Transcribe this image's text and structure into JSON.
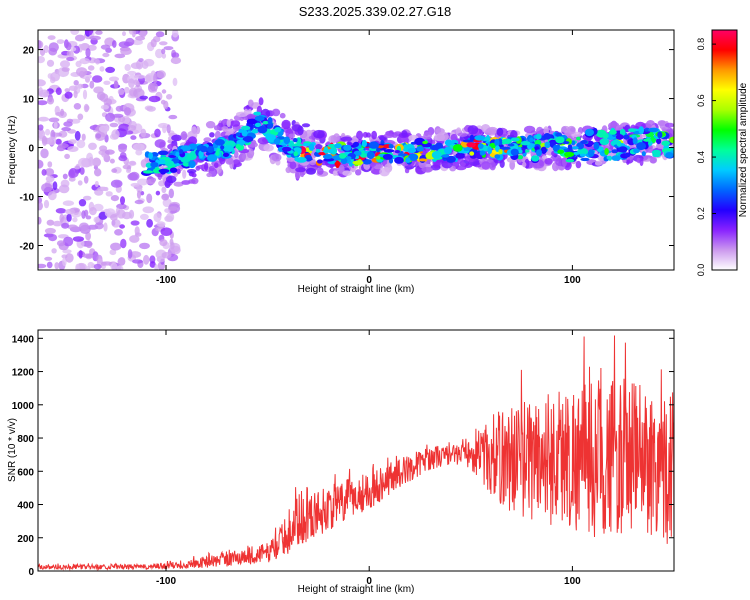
{
  "title": "S233.2025.339.02.27.G18",
  "chart_data": [
    {
      "type": "heatmap",
      "title": "",
      "xlabel": "Height of straight line (km)",
      "ylabel": "Frequency (Hz)",
      "xlim": [
        -163,
        150
      ],
      "ylim": [
        -25,
        24
      ],
      "xticks": [
        -100,
        0,
        100
      ],
      "yticks": [
        -20,
        -10,
        0,
        10,
        20
      ],
      "track": {
        "x": [
          -160,
          -140,
          -120,
          -100,
          -90,
          -80,
          -70,
          -60,
          -55,
          -50,
          -45,
          -40,
          -30,
          -20,
          -10,
          0,
          10,
          20,
          30,
          40,
          50,
          60,
          70,
          80,
          90,
          100,
          110,
          120,
          130,
          140,
          150
        ],
        "freq": [
          -4,
          -4,
          -3.5,
          -3,
          -2,
          -1,
          0,
          3,
          5,
          4,
          2,
          0,
          -1,
          -1.5,
          -1.5,
          -1,
          -1,
          -1,
          -0.5,
          -0.5,
          0,
          0,
          0,
          0,
          0,
          0,
          0.5,
          0.5,
          1,
          1,
          1
        ]
      },
      "colorbar": {
        "label": "Normalized spectral amplitude",
        "range": [
          0,
          0.85
        ],
        "ticks": [
          "0.0",
          "0.2",
          "0.4",
          "0.6",
          "0.8"
        ],
        "colormap": [
          "#ffffff",
          "#cc99ee",
          "#8822ff",
          "#2200ff",
          "#0066ff",
          "#00ccff",
          "#00ff99",
          "#00ff00",
          "#aaff00",
          "#ffff00",
          "#ff9900",
          "#ff0000",
          "#ff0066"
        ]
      }
    },
    {
      "type": "line",
      "title": "",
      "xlabel": "Height of straight line (km)",
      "ylabel": "SNR (10 * v/v)",
      "xlim": [
        -163,
        150
      ],
      "ylim": [
        0,
        1450
      ],
      "xticks": [
        -100,
        0,
        100
      ],
      "yticks": [
        0,
        200,
        400,
        600,
        800,
        1000,
        1200,
        1400
      ],
      "color": "#ee3333",
      "series": [
        {
          "name": "SNR",
          "x": [
            -163,
            -150,
            -140,
            -130,
            -120,
            -110,
            -100,
            -90,
            -80,
            -70,
            -60,
            -50,
            -45,
            -40,
            -35,
            -30,
            -25,
            -20,
            -15,
            -10,
            -5,
            0,
            5,
            10,
            15,
            20,
            25,
            30,
            35,
            40,
            45,
            50,
            55,
            60,
            65,
            70,
            75,
            80,
            85,
            90,
            95,
            100,
            105,
            110,
            115,
            120,
            125,
            130,
            135,
            140,
            145,
            150
          ],
          "mean": [
            25,
            25,
            25,
            25,
            25,
            25,
            30,
            40,
            55,
            70,
            90,
            110,
            160,
            220,
            300,
            320,
            350,
            380,
            400,
            430,
            460,
            490,
            520,
            560,
            590,
            620,
            650,
            680,
            690,
            700,
            700,
            700,
            690,
            690,
            680,
            680,
            680,
            680,
            680,
            690,
            690,
            680,
            680,
            680,
            690,
            690,
            680,
            690,
            680,
            650,
            640,
            620
          ],
          "amplitude": [
            15,
            15,
            15,
            15,
            15,
            15,
            20,
            25,
            35,
            45,
            55,
            60,
            90,
            120,
            150,
            140,
            140,
            140,
            130,
            130,
            120,
            120,
            110,
            100,
            90,
            80,
            80,
            70,
            70,
            60,
            60,
            90,
            150,
            250,
            300,
            330,
            350,
            380,
            400,
            420,
            430,
            450,
            460,
            480,
            480,
            480,
            480,
            470,
            460,
            460,
            470,
            480
          ]
        }
      ]
    }
  ]
}
